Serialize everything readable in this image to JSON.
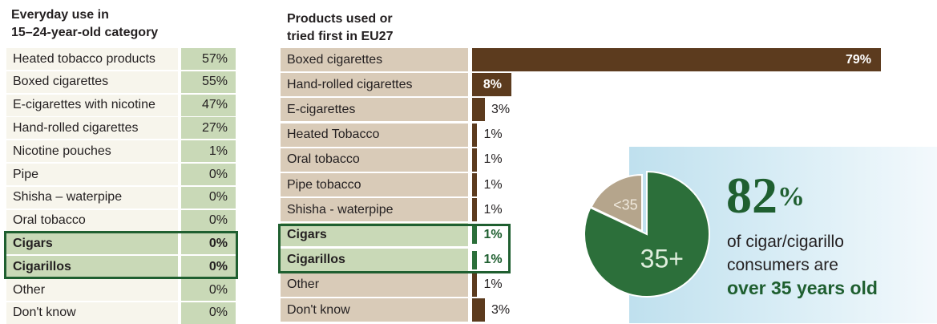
{
  "chart_data": [
    {
      "type": "table",
      "title": "Everyday use in\n15–24-year-old category",
      "rows": [
        {
          "label": "Heated tobacco products",
          "value": "57%"
        },
        {
          "label": "Boxed cigarettes",
          "value": "55%"
        },
        {
          "label": "E-cigarettes with nicotine",
          "value": "47%"
        },
        {
          "label": "Hand-rolled cigarettes",
          "value": "27%"
        },
        {
          "label": "Nicotine pouches",
          "value": "1%"
        },
        {
          "label": "Pipe",
          "value": "0%"
        },
        {
          "label": "Shisha – waterpipe",
          "value": "0%"
        },
        {
          "label": "Oral tobacco",
          "value": "0%"
        },
        {
          "label": "Cigars",
          "value": "0%",
          "highlight": true
        },
        {
          "label": "Cigarillos",
          "value": "0%",
          "highlight": true
        },
        {
          "label": "Other",
          "value": "0%"
        },
        {
          "label": "Don't know",
          "value": "0%"
        }
      ]
    },
    {
      "type": "bar",
      "orientation": "horizontal",
      "title": "Products used or\ntried first in EU27",
      "categories": [
        "Boxed cigarettes",
        "Hand-rolled cigarettes",
        "E-cigarettes",
        "Heated Tobacco",
        "Oral tobacco",
        "Pipe tobacco",
        "Shisha - waterpipe",
        "Cigars",
        "Cigarillos",
        "Other",
        "Don't know"
      ],
      "values": [
        79,
        8,
        3,
        1,
        1,
        1,
        1,
        1,
        1,
        1,
        3
      ],
      "labels": [
        "79%",
        "8%",
        "3%",
        "1%",
        "1%",
        "1%",
        "1%",
        "1%",
        "1%",
        "1%",
        "3%"
      ],
      "highlight": [
        "Cigars",
        "Cigarillos"
      ],
      "xlim": [
        0,
        79
      ],
      "bar_color": "#5c3b1e"
    },
    {
      "type": "pie",
      "slices": [
        {
          "label": "<35",
          "value": 18,
          "color": "#b5a58c"
        },
        {
          "label": "35+",
          "value": 82,
          "color": "#2c6f3a"
        }
      ]
    }
  ],
  "callout": {
    "percent": "82",
    "percent_sign": "%",
    "line1": "of cigar/cigarillo",
    "line2": "consumers are",
    "line3": "over 35 years old"
  }
}
